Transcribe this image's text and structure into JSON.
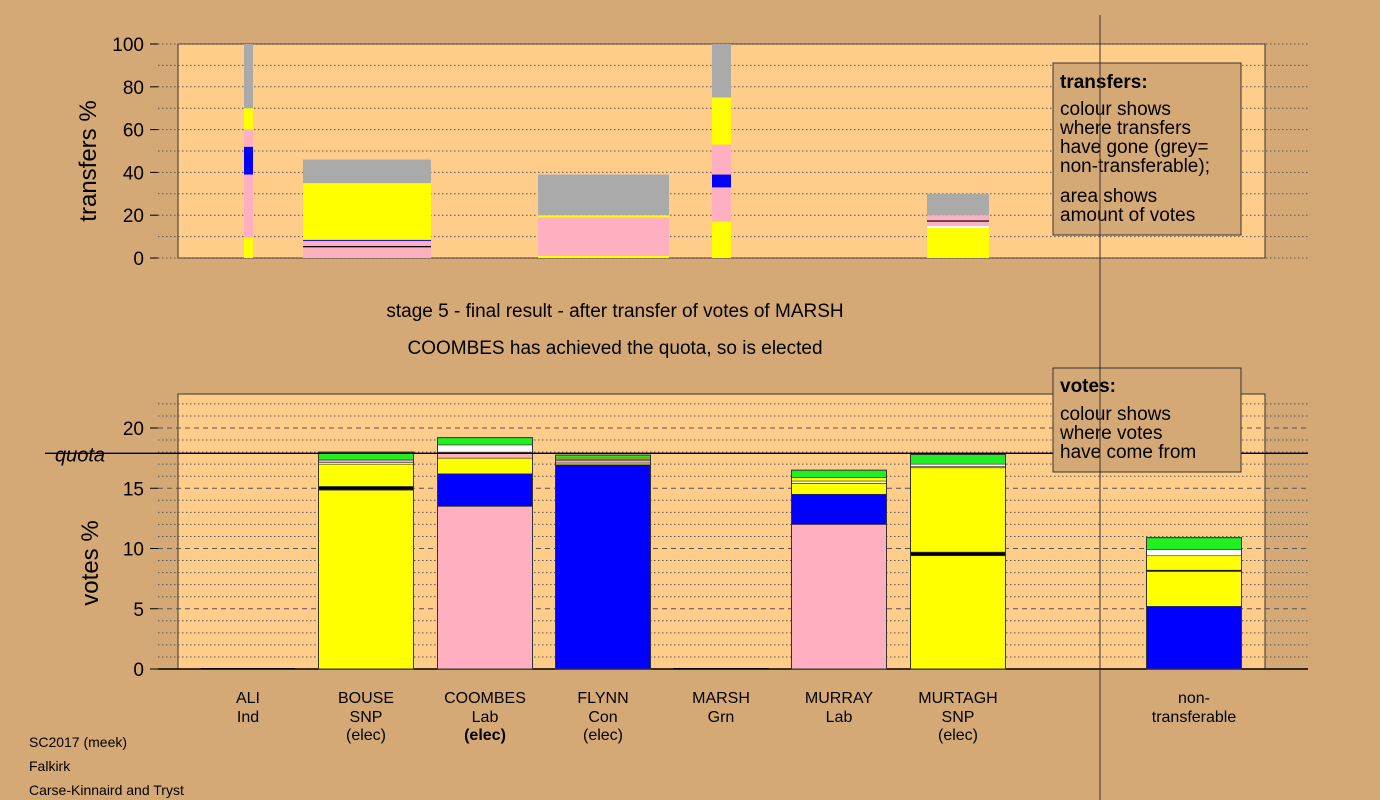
{
  "colors": {
    "background": "#d4a976",
    "plot_area": "#ffcc8a",
    "yellow": "#ffff00",
    "pink": "#ffb0c0",
    "blue": "#0000ff",
    "green": "#22ee22",
    "white": "#ffffff",
    "grey": "#aaaaaa",
    "dark": "#000000"
  },
  "headline": {
    "line1": "stage 5 - final result - after transfer of votes of MARSH",
    "line2": "COOMBES has achieved the quota, so is elected"
  },
  "footer": {
    "line1": "SC2017 (meek)",
    "line2": "Falkirk",
    "line3": "Carse-Kinnaird and Tryst"
  },
  "chart_data": [
    {
      "type": "bar",
      "ylabel": "transfers %",
      "ylim": [
        0,
        100
      ],
      "yticks": [
        "0",
        "20",
        "40",
        "60",
        "80",
        "100"
      ],
      "grid": true,
      "legend": {
        "title": "transfers:",
        "lines": [
          "colour shows",
          "where transfers",
          "have gone (grey=",
          "non-transferable);",
          "area shows",
          "amount of votes"
        ]
      },
      "columns": [
        {
          "candidate": "ALI",
          "width": "narrow",
          "segments": [
            {
              "color": "yellow",
              "from": 0,
              "to": 9.5
            },
            {
              "color": "pink",
              "from": 9.5,
              "to": 39
            },
            {
              "color": "blue",
              "from": 39,
              "to": 52
            },
            {
              "color": "pink",
              "from": 52,
              "to": 60
            },
            {
              "color": "yellow",
              "from": 60,
              "to": 70
            },
            {
              "color": "grey",
              "from": 70,
              "to": 100
            }
          ]
        },
        {
          "candidate": "BOUSE",
          "width": "wide",
          "segments": [
            {
              "color": "pink",
              "from": 0,
              "to": 5
            },
            {
              "color": "dark",
              "from": 5,
              "to": 5.6
            },
            {
              "color": "pink",
              "from": 5.6,
              "to": 8
            },
            {
              "color": "blue",
              "from": 8,
              "to": 8.5
            },
            {
              "color": "yellow",
              "from": 8.5,
              "to": 35
            },
            {
              "color": "grey",
              "from": 35,
              "to": 46
            }
          ]
        },
        {
          "candidate": "FLYNN",
          "width": "wide",
          "segments": [
            {
              "color": "yellow",
              "from": 0,
              "to": 1
            },
            {
              "color": "pink",
              "from": 1,
              "to": 19
            },
            {
              "color": "yellow",
              "from": 19,
              "to": 20
            },
            {
              "color": "grey",
              "from": 20,
              "to": 39
            }
          ]
        },
        {
          "candidate": "MARSH",
          "width": "narrow",
          "segments": [
            {
              "color": "yellow",
              "from": 0,
              "to": 17
            },
            {
              "color": "pink",
              "from": 17,
              "to": 33
            },
            {
              "color": "blue",
              "from": 33,
              "to": 39
            },
            {
              "color": "pink",
              "from": 39,
              "to": 53
            },
            {
              "color": "yellow",
              "from": 53,
              "to": 75
            },
            {
              "color": "grey",
              "from": 75,
              "to": 100
            }
          ]
        },
        {
          "candidate": "MURTAGH",
          "width": "wide",
          "segments": [
            {
              "color": "yellow",
              "from": 0,
              "to": 14
            },
            {
              "color": "white",
              "from": 14,
              "to": 15
            },
            {
              "color": "pink",
              "from": 15,
              "to": 17
            },
            {
              "color": "dark",
              "from": 17,
              "to": 17.6
            },
            {
              "color": "pink",
              "from": 17.6,
              "to": 20
            },
            {
              "color": "grey",
              "from": 20,
              "to": 30
            }
          ]
        }
      ]
    },
    {
      "type": "bar",
      "ylabel": "votes %",
      "ylim": [
        0,
        23
      ],
      "yticks": [
        "0",
        "5",
        "10",
        "15",
        "20"
      ],
      "quota": 17.9,
      "quota_label": "quota",
      "grid": true,
      "legend": {
        "title": "votes:",
        "lines": [
          "colour shows",
          "where votes",
          "have come from"
        ]
      },
      "categories": [
        {
          "name": "ALI",
          "party": "Ind",
          "status": ""
        },
        {
          "name": "BOUSE",
          "party": "SNP",
          "status": "(elec)"
        },
        {
          "name": "COOMBES",
          "party": "Lab",
          "status": "(elec)",
          "status_bold": true
        },
        {
          "name": "FLYNN",
          "party": "Con",
          "status": "(elec)"
        },
        {
          "name": "MARSH",
          "party": "Grn",
          "status": ""
        },
        {
          "name": "MURRAY",
          "party": "Lab",
          "status": ""
        },
        {
          "name": "MURTAGH",
          "party": "SNP",
          "status": "(elec)"
        },
        {
          "name": "non-",
          "party": "transferable",
          "status": ""
        }
      ],
      "stacks": [
        [],
        [
          {
            "color": "yellow",
            "value": 14.85
          },
          {
            "color": "dark",
            "value": 0.3
          },
          {
            "color": "yellow",
            "value": 1.85
          },
          {
            "color": "white",
            "value": 0.15
          },
          {
            "color": "pink",
            "value": 0.2
          },
          {
            "color": "green",
            "value": 0.65
          }
        ],
        [
          {
            "color": "pink",
            "value": 13.5
          },
          {
            "color": "blue",
            "value": 2.7
          },
          {
            "color": "yellow",
            "value": 1.3
          },
          {
            "color": "pink",
            "value": 0.5
          },
          {
            "color": "white",
            "value": 0.6
          },
          {
            "color": "green",
            "value": 0.6
          }
        ],
        [
          {
            "color": "blue",
            "value": 16.95
          },
          {
            "color": "yellow",
            "value": 0.15
          },
          {
            "color": "pink",
            "value": 0.2
          },
          {
            "color": "white",
            "value": 0.1
          },
          {
            "color": "yellow",
            "value": 0.1
          },
          {
            "color": "green",
            "value": 0.25
          }
        ],
        [],
        [
          {
            "color": "pink",
            "value": 12.0
          },
          {
            "color": "blue",
            "value": 2.5
          },
          {
            "color": "yellow",
            "value": 0.9
          },
          {
            "color": "white",
            "value": 0.2
          },
          {
            "color": "yellow",
            "value": 0.3
          },
          {
            "color": "green",
            "value": 0.6
          }
        ],
        [
          {
            "color": "yellow",
            "value": 9.4
          },
          {
            "color": "dark",
            "value": 0.3
          },
          {
            "color": "yellow",
            "value": 7.0
          },
          {
            "color": "pink",
            "value": 0.1
          },
          {
            "color": "white",
            "value": 0.2
          },
          {
            "color": "green",
            "value": 0.8
          }
        ],
        [
          {
            "color": "blue",
            "value": 5.2
          },
          {
            "color": "yellow",
            "value": 2.9
          },
          {
            "color": "dark",
            "value": 0.1
          },
          {
            "color": "yellow",
            "value": 1.2
          },
          {
            "color": "white",
            "value": 0.5
          },
          {
            "color": "green",
            "value": 1.0
          }
        ]
      ]
    }
  ]
}
